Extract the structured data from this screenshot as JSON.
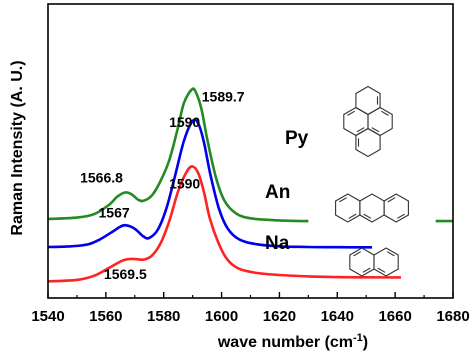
{
  "chart_data": {
    "type": "line",
    "xlabel": "wave number (cm",
    "xlabel_sup": "-1",
    "xlabel_end": ")",
    "ylabel": "Raman Intensity (A. U.)",
    "xlim": [
      1540,
      1680
    ],
    "xticks": [
      1540,
      1560,
      1580,
      1600,
      1620,
      1640,
      1660,
      1680
    ],
    "grid": false,
    "series": [
      {
        "name": "Py",
        "color": "#228B22",
        "peaks": [
          {
            "x": 1566.8,
            "label": "1566.8"
          },
          {
            "x": 1589.7,
            "label": "1589.7"
          }
        ],
        "points": [
          [
            1540,
            0.4
          ],
          [
            1550,
            0.42
          ],
          [
            1556,
            0.47
          ],
          [
            1561,
            0.6
          ],
          [
            1564,
            0.72
          ],
          [
            1566.8,
            0.78
          ],
          [
            1569,
            0.75
          ],
          [
            1571,
            0.68
          ],
          [
            1573,
            0.66
          ],
          [
            1576,
            0.74
          ],
          [
            1579,
            0.95
          ],
          [
            1582,
            1.25
          ],
          [
            1585,
            1.72
          ],
          [
            1587,
            2.06
          ],
          [
            1589.7,
            2.25
          ],
          [
            1591,
            2.22
          ],
          [
            1593,
            1.98
          ],
          [
            1595,
            1.55
          ],
          [
            1598,
            1.0
          ],
          [
            1601,
            0.66
          ],
          [
            1605,
            0.48
          ],
          [
            1610,
            0.41
          ],
          [
            1620,
            0.38
          ],
          [
            1630,
            0.37
          ]
        ]
      },
      {
        "name": "An",
        "color": "#0000EE",
        "peaks": [
          {
            "x": 1567,
            "label": "1567"
          },
          {
            "x": 1590,
            "label": "1590"
          }
        ],
        "points": [
          [
            1540,
            0.0
          ],
          [
            1548,
            0.01
          ],
          [
            1554,
            0.04
          ],
          [
            1558,
            0.11
          ],
          [
            1562,
            0.21
          ],
          [
            1565,
            0.29
          ],
          [
            1567,
            0.31
          ],
          [
            1570,
            0.26
          ],
          [
            1573,
            0.15
          ],
          [
            1575,
            0.13
          ],
          [
            1578,
            0.25
          ],
          [
            1581,
            0.56
          ],
          [
            1584,
            1.03
          ],
          [
            1587,
            1.52
          ],
          [
            1590,
            1.8
          ],
          [
            1592,
            1.76
          ],
          [
            1594,
            1.48
          ],
          [
            1596,
            1.06
          ],
          [
            1599,
            0.56
          ],
          [
            1602,
            0.27
          ],
          [
            1606,
            0.11
          ],
          [
            1612,
            0.04
          ],
          [
            1620,
            0.01
          ],
          [
            1630,
            0.0
          ],
          [
            1640,
            -0.003
          ],
          [
            1652,
            -0.005
          ]
        ]
      },
      {
        "name": "Na",
        "color": "#FF2222",
        "peaks": [
          {
            "x": 1569.5,
            "label": "1569.5"
          },
          {
            "x": 1590,
            "label": "1590"
          }
        ],
        "points": [
          [
            1540,
            -0.49
          ],
          [
            1550,
            -0.47
          ],
          [
            1556,
            -0.41
          ],
          [
            1561,
            -0.3
          ],
          [
            1566,
            -0.19
          ],
          [
            1569.5,
            -0.17
          ],
          [
            1573,
            -0.18
          ],
          [
            1576,
            -0.12
          ],
          [
            1579,
            0.06
          ],
          [
            1582,
            0.38
          ],
          [
            1585,
            0.8
          ],
          [
            1588,
            1.08
          ],
          [
            1590,
            1.15
          ],
          [
            1592,
            1.05
          ],
          [
            1594,
            0.77
          ],
          [
            1596,
            0.4
          ],
          [
            1599,
            0.05
          ],
          [
            1602,
            -0.18
          ],
          [
            1606,
            -0.31
          ],
          [
            1612,
            -0.37
          ],
          [
            1620,
            -0.4
          ],
          [
            1630,
            -0.42
          ],
          [
            1640,
            -0.43
          ],
          [
            1650,
            -0.433
          ],
          [
            1662,
            -0.435
          ]
        ]
      }
    ],
    "molecules": [
      "pyrene",
      "anthracene",
      "naphthalene"
    ]
  }
}
